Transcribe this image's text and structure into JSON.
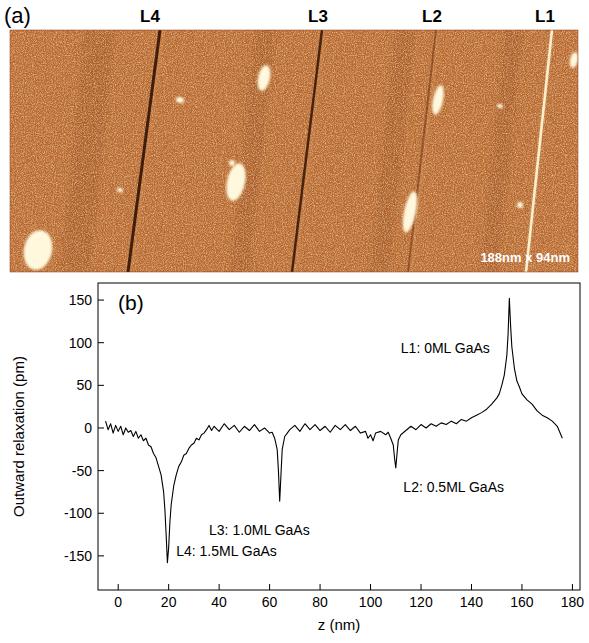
{
  "panel_a": {
    "label": "(a)",
    "line_labels": [
      "L4",
      "L3",
      "L2",
      "L1"
    ],
    "scale_text": "188nm x 94nm"
  },
  "chart_data": {
    "type": "line",
    "panel_label": "(b)",
    "x_label": "z (nm)",
    "y_label": "Outward relaxation (pm)",
    "xlim": [
      -8,
      183
    ],
    "ylim": [
      -190,
      170
    ],
    "xticks": [
      0,
      20,
      40,
      60,
      80,
      100,
      120,
      140,
      160,
      180
    ],
    "yticks": [
      -150,
      -100,
      -50,
      0,
      50,
      100,
      150
    ],
    "grid": false,
    "series": [
      {
        "color": "#000000",
        "line_style": "solid",
        "x": [
          -5,
          -4,
          -3,
          -2,
          -1,
          0,
          1,
          2,
          3,
          4,
          5,
          6,
          7,
          8,
          9,
          10,
          11,
          12,
          13,
          14,
          15,
          16,
          17,
          18,
          18.5,
          19,
          19.5,
          20,
          20.5,
          21,
          22,
          23,
          24,
          25,
          26,
          27,
          28,
          29,
          30,
          31,
          32,
          33,
          34,
          35,
          36,
          37,
          38,
          40,
          42,
          44,
          46,
          48,
          50,
          52,
          54,
          56,
          58,
          60,
          61,
          62,
          63,
          63.5,
          64,
          64.5,
          65,
          66,
          67,
          68,
          70,
          72,
          74,
          76,
          78,
          80,
          82,
          84,
          86,
          88,
          90,
          92,
          94,
          96,
          98,
          99,
          100,
          101,
          102,
          104,
          106,
          107,
          108,
          109,
          109.5,
          110,
          110.5,
          111,
          112,
          114,
          116,
          118,
          120,
          122,
          124,
          126,
          128,
          130,
          132,
          134,
          136,
          138,
          140,
          142,
          144,
          146,
          148,
          150,
          151,
          152,
          153,
          154,
          154.5,
          155,
          155.5,
          156,
          157,
          158,
          159,
          160,
          162,
          164,
          166,
          168,
          170,
          172,
          174,
          175,
          176
        ],
        "values": [
          8,
          -2,
          5,
          -6,
          3,
          -4,
          2,
          -8,
          0,
          -5,
          -3,
          -10,
          -4,
          -12,
          -8,
          -15,
          -12,
          -20,
          -22,
          -30,
          -35,
          -45,
          -55,
          -75,
          -95,
          -125,
          -158,
          -140,
          -110,
          -90,
          -68,
          -55,
          -45,
          -40,
          -32,
          -30,
          -24,
          -20,
          -18,
          -12,
          -14,
          -8,
          -6,
          -2,
          3,
          -3,
          2,
          -4,
          5,
          -2,
          3,
          -5,
          2,
          -3,
          4,
          -4,
          0,
          -6,
          -5,
          -12,
          -25,
          -50,
          -86,
          -55,
          -25,
          -10,
          -6,
          -2,
          3,
          -4,
          5,
          -2,
          4,
          -3,
          2,
          -5,
          3,
          -2,
          4,
          -3,
          2,
          -6,
          -4,
          -12,
          -8,
          -15,
          -6,
          -4,
          -8,
          -5,
          -12,
          -20,
          -35,
          -47,
          -30,
          -14,
          -8,
          -3,
          2,
          -2,
          4,
          0,
          5,
          2,
          6,
          4,
          8,
          5,
          10,
          8,
          12,
          15,
          18,
          22,
          28,
          35,
          40,
          50,
          62,
          85,
          110,
          152,
          120,
          95,
          70,
          55,
          48,
          40,
          33,
          28,
          20,
          15,
          12,
          8,
          2,
          -5,
          -12
        ]
      }
    ],
    "annotations": [
      {
        "text": "L1: 0ML GaAs",
        "x": 112,
        "y": 88
      },
      {
        "text": "L2: 0.5ML GaAs",
        "x": 113,
        "y": -75
      },
      {
        "text": "L3: 1.0ML GaAs",
        "x": 36,
        "y": -125
      },
      {
        "text": "L4: 1.5ML GaAs",
        "x": 23,
        "y": -150
      }
    ]
  }
}
